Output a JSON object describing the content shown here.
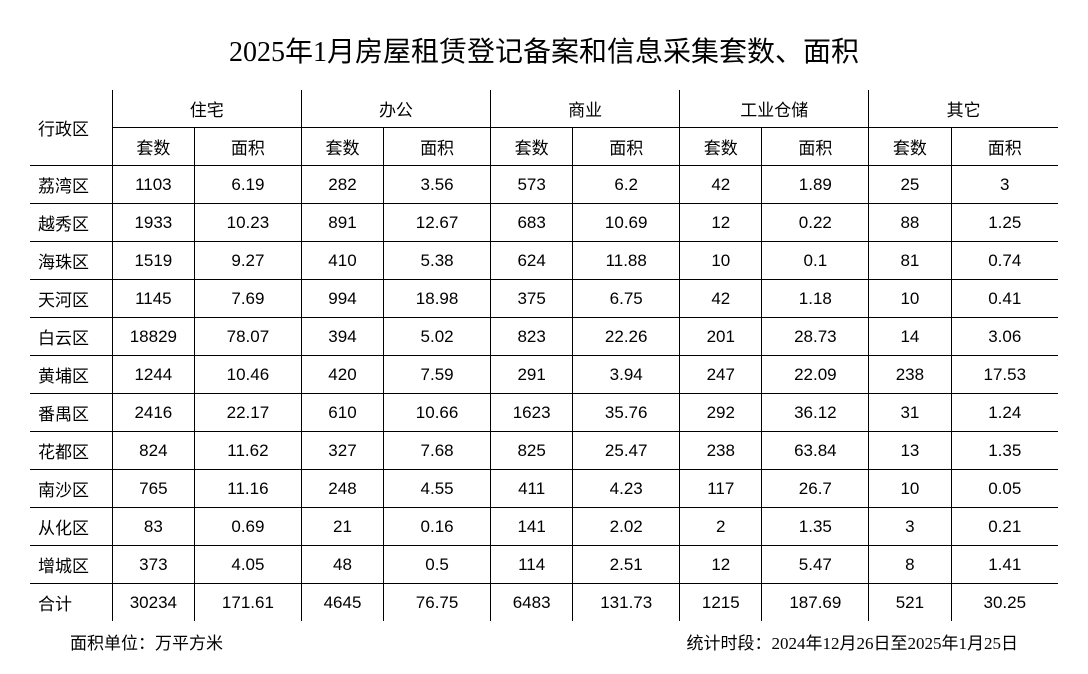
{
  "title": "2025年1月房屋租赁登记备案和信息采集套数、面积",
  "header": {
    "district": "行政区",
    "groups": [
      "住宅",
      "办公",
      "商业",
      "工业仓储",
      "其它"
    ],
    "sub": {
      "count": "套数",
      "area": "面积"
    }
  },
  "rows": [
    {
      "d": "荔湾区",
      "v": [
        "1103",
        "6.19",
        "282",
        "3.56",
        "573",
        "6.2",
        "42",
        "1.89",
        "25",
        "3"
      ]
    },
    {
      "d": "越秀区",
      "v": [
        "1933",
        "10.23",
        "891",
        "12.67",
        "683",
        "10.69",
        "12",
        "0.22",
        "88",
        "1.25"
      ]
    },
    {
      "d": "海珠区",
      "v": [
        "1519",
        "9.27",
        "410",
        "5.38",
        "624",
        "11.88",
        "10",
        "0.1",
        "81",
        "0.74"
      ]
    },
    {
      "d": "天河区",
      "v": [
        "1145",
        "7.69",
        "994",
        "18.98",
        "375",
        "6.75",
        "42",
        "1.18",
        "10",
        "0.41"
      ]
    },
    {
      "d": "白云区",
      "v": [
        "18829",
        "78.07",
        "394",
        "5.02",
        "823",
        "22.26",
        "201",
        "28.73",
        "14",
        "3.06"
      ]
    },
    {
      "d": "黄埔区",
      "v": [
        "1244",
        "10.46",
        "420",
        "7.59",
        "291",
        "3.94",
        "247",
        "22.09",
        "238",
        "17.53"
      ]
    },
    {
      "d": "番禺区",
      "v": [
        "2416",
        "22.17",
        "610",
        "10.66",
        "1623",
        "35.76",
        "292",
        "36.12",
        "31",
        "1.24"
      ]
    },
    {
      "d": "花都区",
      "v": [
        "824",
        "11.62",
        "327",
        "7.68",
        "825",
        "25.47",
        "238",
        "63.84",
        "13",
        "1.35"
      ]
    },
    {
      "d": "南沙区",
      "v": [
        "765",
        "11.16",
        "248",
        "4.55",
        "411",
        "4.23",
        "117",
        "26.7",
        "10",
        "0.05"
      ]
    },
    {
      "d": "从化区",
      "v": [
        "83",
        "0.69",
        "21",
        "0.16",
        "141",
        "2.02",
        "2",
        "1.35",
        "3",
        "0.21"
      ]
    },
    {
      "d": "增城区",
      "v": [
        "373",
        "4.05",
        "48",
        "0.5",
        "114",
        "2.51",
        "12",
        "5.47",
        "8",
        "1.41"
      ]
    }
  ],
  "total": {
    "d": "合计",
    "v": [
      "30234",
      "171.61",
      "4645",
      "76.75",
      "6483",
      "131.73",
      "1215",
      "187.69",
      "521",
      "30.25"
    ]
  },
  "footer": {
    "unit": "面积单位：万平方米",
    "period": "统计时段：2024年12月26日至2025年1月25日"
  },
  "style": {
    "background": "#ffffff",
    "text_color": "#000000",
    "border_color": "#000000",
    "title_fontsize": 28,
    "cell_fontsize": 17,
    "footer_fontsize": 17
  }
}
